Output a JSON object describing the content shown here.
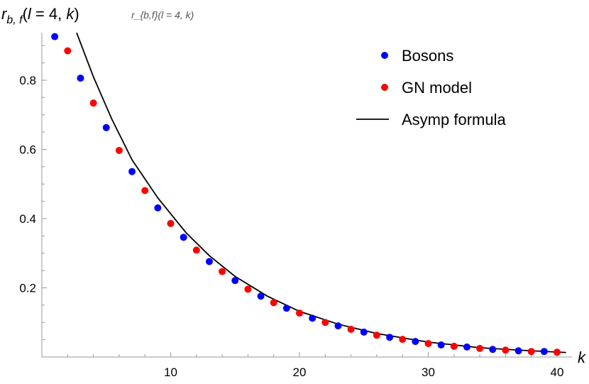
{
  "chart_data": {
    "type": "scatter",
    "ylabel": "r_{b,f}(l = 4, k)",
    "ylabel_parts": {
      "base": "r",
      "sub": "b, f",
      "open": "(",
      "l": "l",
      "rest": " = 4, ",
      "k": "k",
      "close": ")"
    },
    "xlabel": "k",
    "xlim": [
      0,
      41
    ],
    "ylim": [
      0,
      0.94
    ],
    "x_ticks": [
      10,
      20,
      30,
      40
    ],
    "y_ticks": [
      0.2,
      0.4,
      0.6,
      0.8
    ],
    "x_tick_labels": [
      "10",
      "20",
      "30",
      "40"
    ],
    "y_tick_labels": [
      "0.2",
      "0.4",
      "0.6",
      "0.8"
    ],
    "grid": false,
    "legend_placement": "top-right",
    "series": [
      {
        "name": "Bosons",
        "type": "scatter",
        "color": "#0000ff",
        "x": [
          1,
          3,
          5,
          7,
          9,
          11,
          13,
          15,
          17,
          19,
          21,
          23,
          25,
          27,
          29,
          31,
          33,
          35,
          37,
          39
        ],
        "y": [
          0.926,
          0.806,
          0.663,
          0.536,
          0.431,
          0.346,
          0.276,
          0.221,
          0.176,
          0.141,
          0.112,
          0.09,
          0.072,
          0.057,
          0.045,
          0.035,
          0.029,
          0.022,
          0.018,
          0.016
        ]
      },
      {
        "name": "GN model",
        "type": "scatter",
        "color": "#ff0000",
        "x": [
          2,
          4,
          6,
          8,
          10,
          12,
          14,
          16,
          18,
          20,
          22,
          24,
          26,
          28,
          30,
          32,
          34,
          36,
          38,
          40
        ],
        "y": [
          0.885,
          0.734,
          0.597,
          0.481,
          0.386,
          0.309,
          0.247,
          0.196,
          0.157,
          0.127,
          0.1,
          0.08,
          0.063,
          0.051,
          0.039,
          0.031,
          0.025,
          0.02,
          0.016,
          0.014
        ]
      },
      {
        "name": "Asymp formula",
        "type": "line",
        "color": "#000000",
        "x": [
          2.7,
          4,
          5.4,
          7,
          9,
          11.2,
          13,
          15,
          17.5,
          20,
          23,
          26,
          30,
          34,
          37,
          40.7
        ],
        "y": [
          0.937,
          0.81,
          0.69,
          0.57,
          0.46,
          0.359,
          0.293,
          0.233,
          0.176,
          0.132,
          0.095,
          0.068,
          0.043,
          0.027,
          0.02,
          0.013
        ]
      }
    ]
  }
}
